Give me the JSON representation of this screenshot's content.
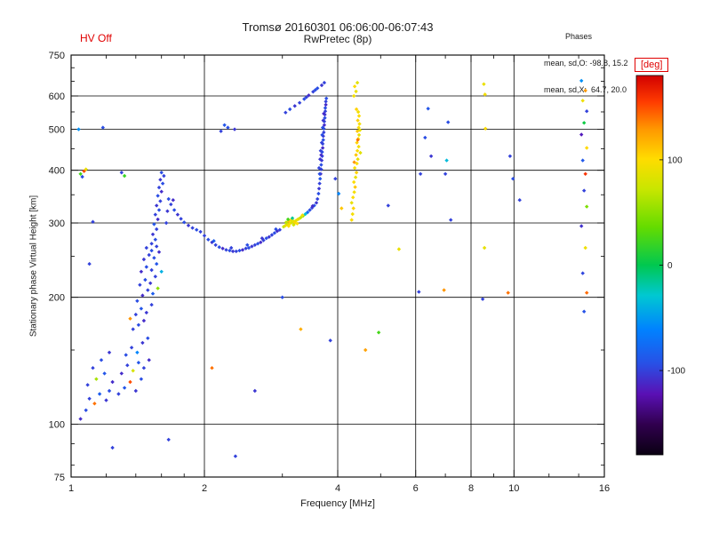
{
  "header": {
    "hv_off": "HV Off",
    "title": "Tromsø 20160301 06:06:00-06:07:43",
    "subtitle": "RwPretec (8p)",
    "phases_title": "Phases",
    "phases_o": "mean, sd,O: -98.8, 15.2",
    "phases_x": "mean, sd,X:  64.7, 20.0"
  },
  "colors": {
    "accent_red": "#e00000",
    "axis": "#000000",
    "background": "#ffffff"
  },
  "chart_data": {
    "type": "scatter",
    "title": "Tromsø 20160301 06:06:00-06:07:43",
    "subtitle": "RwPretec (8p)",
    "xlabel": "Frequency [MHz]",
    "ylabel": "Stationary phase Virtual Height [km]",
    "x_scale": "log",
    "y_scale": "log",
    "xlim": [
      1,
      16
    ],
    "ylim": [
      75,
      750
    ],
    "x_ticks": [
      1,
      2,
      4,
      6,
      8,
      10,
      16
    ],
    "y_ticks": [
      75,
      100,
      200,
      300,
      400,
      500,
      600,
      750
    ],
    "x_gridlines": [
      2,
      4,
      6,
      8,
      10
    ],
    "y_gridlines": [
      100,
      200,
      300,
      400,
      500,
      600
    ],
    "x_minor_ticks": [
      1.2,
      1.4,
      1.6,
      1.8,
      3,
      5,
      7,
      9,
      12,
      14
    ],
    "y_minor_ticks": [
      80,
      90,
      150,
      250,
      350,
      450,
      550,
      650,
      700
    ],
    "grid": true,
    "legend_position": "none",
    "colorbar": {
      "label": "[deg]",
      "ticks": [
        100,
        0,
        -100
      ],
      "range": [
        -180,
        180
      ],
      "stops": [
        {
          "t": 0.0,
          "color": "#0a0012"
        },
        {
          "t": 0.08,
          "color": "#30004e"
        },
        {
          "t": 0.16,
          "color": "#5a10b4"
        },
        {
          "t": 0.24,
          "color": "#2850e6"
        },
        {
          "t": 0.33,
          "color": "#0082ff"
        },
        {
          "t": 0.42,
          "color": "#00c8d2"
        },
        {
          "t": 0.5,
          "color": "#00c850"
        },
        {
          "t": 0.6,
          "color": "#64dc00"
        },
        {
          "t": 0.7,
          "color": "#c8e600"
        },
        {
          "t": 0.78,
          "color": "#ffdc00"
        },
        {
          "t": 0.86,
          "color": "#ff9600"
        },
        {
          "t": 0.93,
          "color": "#ff3c00"
        },
        {
          "t": 1.0,
          "color": "#d20000"
        }
      ]
    },
    "points_format": [
      "frequency_MHz",
      "virtual_height_km",
      "phase_deg"
    ],
    "points": [
      [
        1.05,
        103,
        -110
      ],
      [
        1.08,
        108,
        -95
      ],
      [
        1.1,
        115,
        -100
      ],
      [
        1.13,
        112,
        140
      ],
      [
        1.16,
        118,
        -85
      ],
      [
        1.2,
        114,
        -105
      ],
      [
        1.22,
        120,
        -95
      ],
      [
        1.09,
        124,
        -100
      ],
      [
        1.14,
        128,
        60
      ],
      [
        1.19,
        132,
        -90
      ],
      [
        1.24,
        126,
        -110
      ],
      [
        1.12,
        136,
        -100
      ],
      [
        1.17,
        142,
        -95
      ],
      [
        1.22,
        148,
        -105
      ],
      [
        1.24,
        88,
        -100
      ],
      [
        1.28,
        118,
        -100
      ],
      [
        1.32,
        122,
        -90
      ],
      [
        1.36,
        126,
        150
      ],
      [
        1.4,
        120,
        -105
      ],
      [
        1.44,
        128,
        -95
      ],
      [
        1.3,
        132,
        -110
      ],
      [
        1.34,
        138,
        -100
      ],
      [
        1.38,
        134,
        80
      ],
      [
        1.42,
        140,
        -90
      ],
      [
        1.46,
        136,
        -100
      ],
      [
        1.5,
        142,
        -110
      ],
      [
        1.33,
        146,
        -95
      ],
      [
        1.37,
        152,
        -100
      ],
      [
        1.41,
        148,
        -60
      ],
      [
        1.45,
        156,
        -105
      ],
      [
        1.49,
        160,
        -95
      ],
      [
        1.38,
        168,
        -100
      ],
      [
        1.42,
        172,
        -95
      ],
      [
        1.46,
        176,
        -110
      ],
      [
        1.4,
        182,
        -100
      ],
      [
        1.44,
        188,
        -90
      ],
      [
        1.48,
        184,
        -105
      ],
      [
        1.52,
        192,
        -100
      ],
      [
        1.41,
        196,
        -95
      ],
      [
        1.45,
        202,
        -110
      ],
      [
        1.49,
        208,
        -100
      ],
      [
        1.53,
        204,
        -85
      ],
      [
        1.43,
        214,
        -100
      ],
      [
        1.47,
        220,
        -95
      ],
      [
        1.51,
        216,
        -105
      ],
      [
        1.55,
        224,
        -100
      ],
      [
        1.44,
        230,
        -110
      ],
      [
        1.48,
        236,
        -95
      ],
      [
        1.52,
        232,
        -100
      ],
      [
        1.56,
        240,
        -90
      ],
      [
        1.46,
        246,
        -105
      ],
      [
        1.5,
        252,
        -100
      ],
      [
        1.54,
        248,
        -95
      ],
      [
        1.58,
        256,
        -110
      ],
      [
        1.48,
        262,
        -100
      ],
      [
        1.52,
        258,
        -95
      ],
      [
        1.56,
        264,
        -100
      ],
      [
        1.36,
        178,
        130
      ],
      [
        1.57,
        210,
        50
      ],
      [
        1.6,
        230,
        -40
      ],
      [
        1.52,
        268,
        -100
      ],
      [
        1.55,
        274,
        -95
      ],
      [
        1.53,
        282,
        -105
      ],
      [
        1.56,
        290,
        -100
      ],
      [
        1.54,
        298,
        -90
      ],
      [
        1.57,
        306,
        -110
      ],
      [
        1.55,
        314,
        -100
      ],
      [
        1.58,
        322,
        -95
      ],
      [
        1.56,
        330,
        -105
      ],
      [
        1.59,
        338,
        -100
      ],
      [
        1.57,
        348,
        -95
      ],
      [
        1.6,
        356,
        -110
      ],
      [
        1.58,
        364,
        -100
      ],
      [
        1.61,
        372,
        -95
      ],
      [
        1.59,
        380,
        -105
      ],
      [
        1.62,
        388,
        -100
      ],
      [
        1.6,
        395,
        -95
      ],
      [
        1.64,
        300,
        -100
      ],
      [
        1.65,
        320,
        -105
      ],
      [
        1.66,
        342,
        -95
      ],
      [
        1.68,
        332,
        -100
      ],
      [
        1.71,
        322,
        -95
      ],
      [
        1.74,
        314,
        -105
      ],
      [
        1.77,
        307,
        -100
      ],
      [
        1.8,
        301,
        -95
      ],
      [
        1.84,
        296,
        -105
      ],
      [
        1.88,
        292,
        -100
      ],
      [
        1.92,
        289,
        -95
      ],
      [
        1.96,
        286,
        -100
      ],
      [
        1.7,
        340,
        -110
      ],
      [
        2.0,
        280,
        -100
      ],
      [
        2.04,
        274,
        -95
      ],
      [
        2.08,
        270,
        -105
      ],
      [
        2.12,
        266,
        -100
      ],
      [
        2.16,
        263,
        -95
      ],
      [
        2.2,
        261,
        -110
      ],
      [
        2.24,
        259,
        -100
      ],
      [
        2.28,
        258,
        -95
      ],
      [
        2.32,
        257,
        -105
      ],
      [
        2.36,
        257,
        -100
      ],
      [
        2.4,
        258,
        -95
      ],
      [
        2.44,
        259,
        -110
      ],
      [
        2.48,
        261,
        -100
      ],
      [
        2.52,
        262,
        -95
      ],
      [
        2.56,
        264,
        -105
      ],
      [
        2.6,
        266,
        -100
      ],
      [
        2.64,
        268,
        -95
      ],
      [
        2.68,
        270,
        -110
      ],
      [
        2.72,
        273,
        -100
      ],
      [
        2.76,
        276,
        -95
      ],
      [
        2.8,
        278,
        -105
      ],
      [
        2.84,
        281,
        -100
      ],
      [
        2.88,
        284,
        -95
      ],
      [
        2.92,
        287,
        -110
      ],
      [
        2.96,
        289,
        -100
      ],
      [
        2.1,
        272,
        -85
      ],
      [
        2.3,
        262,
        -100
      ],
      [
        2.5,
        266,
        -95
      ],
      [
        2.7,
        276,
        -105
      ],
      [
        2.9,
        290,
        -95
      ],
      [
        3.02,
        294,
        75
      ],
      [
        3.05,
        296,
        90
      ],
      [
        3.08,
        298,
        85
      ],
      [
        3.1,
        295,
        100
      ],
      [
        3.12,
        299,
        95
      ],
      [
        3.15,
        301,
        80
      ],
      [
        3.18,
        303,
        90
      ],
      [
        3.2,
        300,
        105
      ],
      [
        3.22,
        304,
        85
      ],
      [
        3.25,
        306,
        95
      ],
      [
        3.06,
        301,
        65
      ],
      [
        3.1,
        303,
        110
      ],
      [
        3.14,
        305,
        90
      ],
      [
        3.18,
        297,
        75
      ],
      [
        3.24,
        299,
        100
      ],
      [
        3.27,
        307,
        85
      ],
      [
        3.16,
        308,
        -15
      ],
      [
        3.09,
        306,
        25
      ],
      [
        3.3,
        309,
        70
      ],
      [
        3.34,
        312,
        45
      ],
      [
        3.38,
        315,
        -30
      ],
      [
        3.42,
        318,
        -75
      ],
      [
        3.46,
        322,
        -95
      ],
      [
        3.5,
        326,
        -100
      ],
      [
        3.54,
        330,
        -90
      ],
      [
        3.58,
        335,
        -105
      ],
      [
        3.33,
        313,
        95
      ],
      [
        3.51,
        329,
        -110
      ],
      [
        3.6,
        342,
        -100
      ],
      [
        3.62,
        352,
        -95
      ],
      [
        3.63,
        362,
        -105
      ],
      [
        3.64,
        372,
        -100
      ],
      [
        3.65,
        382,
        -90
      ],
      [
        3.66,
        392,
        -110
      ],
      [
        3.67,
        402,
        -100
      ],
      [
        3.67,
        412,
        -95
      ],
      [
        3.68,
        422,
        -105
      ],
      [
        3.69,
        432,
        -100
      ],
      [
        3.69,
        442,
        -95
      ],
      [
        3.7,
        452,
        -110
      ],
      [
        3.7,
        462,
        -100
      ],
      [
        3.71,
        472,
        -95
      ],
      [
        3.71,
        482,
        -105
      ],
      [
        3.72,
        492,
        -100
      ],
      [
        3.72,
        502,
        -95
      ],
      [
        3.73,
        512,
        -110
      ],
      [
        3.73,
        522,
        -100
      ],
      [
        3.74,
        532,
        -95
      ],
      [
        3.74,
        542,
        -105
      ],
      [
        3.75,
        552,
        -100
      ],
      [
        3.75,
        562,
        -95
      ],
      [
        3.76,
        572,
        -110
      ],
      [
        3.76,
        582,
        -100
      ],
      [
        3.77,
        592,
        -95
      ],
      [
        3.65,
        425,
        -105
      ],
      [
        3.68,
        465,
        -100
      ],
      [
        3.7,
        505,
        -95
      ],
      [
        3.72,
        545,
        -110
      ],
      [
        3.66,
        445,
        -100
      ],
      [
        3.69,
        485,
        -95
      ],
      [
        3.71,
        525,
        -105
      ],
      [
        3.63,
        405,
        -100
      ],
      [
        3.67,
        435,
        -110
      ],
      [
        3.64,
        392,
        -95
      ],
      [
        3.05,
        548,
        -100
      ],
      [
        3.12,
        558,
        -95
      ],
      [
        3.2,
        568,
        -105
      ],
      [
        3.28,
        578,
        -100
      ],
      [
        3.36,
        590,
        -95
      ],
      [
        3.44,
        602,
        -110
      ],
      [
        3.52,
        614,
        -100
      ],
      [
        3.6,
        626,
        -95
      ],
      [
        3.68,
        636,
        -105
      ],
      [
        3.73,
        645,
        -100
      ],
      [
        3.4,
        596,
        -100
      ],
      [
        3.56,
        620,
        -95
      ],
      [
        2.18,
        495,
        -100
      ],
      [
        2.26,
        505,
        -95
      ],
      [
        2.34,
        500,
        -105
      ],
      [
        2.22,
        512,
        -90
      ],
      [
        4.3,
        305,
        100
      ],
      [
        4.32,
        315,
        95
      ],
      [
        4.34,
        325,
        105
      ],
      [
        4.3,
        335,
        90
      ],
      [
        4.33,
        345,
        100
      ],
      [
        4.36,
        355,
        95
      ],
      [
        4.38,
        365,
        110
      ],
      [
        4.35,
        375,
        100
      ],
      [
        4.39,
        385,
        90
      ],
      [
        4.41,
        395,
        105
      ],
      [
        4.37,
        405,
        95
      ],
      [
        4.42,
        415,
        100
      ],
      [
        4.44,
        425,
        90
      ],
      [
        4.4,
        435,
        110
      ],
      [
        4.43,
        445,
        100
      ],
      [
        4.46,
        455,
        95
      ],
      [
        4.42,
        465,
        105
      ],
      [
        4.45,
        475,
        100
      ],
      [
        4.47,
        485,
        90
      ],
      [
        4.43,
        495,
        110
      ],
      [
        4.46,
        505,
        100
      ],
      [
        4.48,
        515,
        95
      ],
      [
        4.44,
        525,
        105
      ],
      [
        4.47,
        538,
        100
      ],
      [
        4.45,
        550,
        95
      ],
      [
        4.41,
        558,
        105
      ],
      [
        4.36,
        418,
        130
      ],
      [
        4.44,
        472,
        140
      ],
      [
        4.5,
        440,
        85
      ],
      [
        4.49,
        498,
        90
      ],
      [
        4.35,
        600,
        95
      ],
      [
        4.4,
        615,
        90
      ],
      [
        4.37,
        632,
        100
      ],
      [
        4.43,
        645,
        85
      ],
      [
        3.95,
        382,
        -100
      ],
      [
        4.02,
        352,
        -60
      ],
      [
        4.08,
        325,
        110
      ],
      [
        3.85,
        158,
        -100
      ],
      [
        3.3,
        168,
        120
      ],
      [
        3.0,
        200,
        -95
      ],
      [
        2.6,
        120,
        -105
      ],
      [
        2.08,
        136,
        140
      ],
      [
        1.66,
        92,
        -100
      ],
      [
        4.62,
        150,
        125
      ],
      [
        4.95,
        165,
        25
      ],
      [
        5.2,
        330,
        -100
      ],
      [
        5.5,
        260,
        90
      ],
      [
        6.15,
        392,
        -100
      ],
      [
        6.3,
        478,
        -95
      ],
      [
        6.5,
        432,
        -105
      ],
      [
        6.1,
        206,
        -100
      ],
      [
        6.4,
        560,
        -90
      ],
      [
        7.0,
        392,
        -100
      ],
      [
        7.05,
        422,
        -35
      ],
      [
        7.1,
        520,
        -95
      ],
      [
        6.95,
        208,
        130
      ],
      [
        7.2,
        305,
        -100
      ],
      [
        8.55,
        640,
        90
      ],
      [
        8.6,
        605,
        95
      ],
      [
        8.62,
        502,
        100
      ],
      [
        8.58,
        262,
        88
      ],
      [
        8.5,
        198,
        -100
      ],
      [
        9.8,
        432,
        -100
      ],
      [
        9.95,
        382,
        -95
      ],
      [
        9.7,
        205,
        140
      ],
      [
        10.3,
        340,
        -100
      ],
      [
        2.35,
        84,
        -100
      ],
      [
        14.2,
        652,
        -55
      ],
      [
        14.5,
        618,
        128
      ],
      [
        14.3,
        585,
        92
      ],
      [
        14.6,
        552,
        -100
      ],
      [
        14.4,
        518,
        5
      ],
      [
        14.2,
        486,
        -118
      ],
      [
        14.6,
        452,
        102
      ],
      [
        14.3,
        422,
        -88
      ],
      [
        14.5,
        392,
        158
      ],
      [
        14.4,
        358,
        -100
      ],
      [
        14.6,
        328,
        45
      ],
      [
        14.2,
        295,
        -108
      ],
      [
        14.5,
        262,
        92
      ],
      [
        14.3,
        228,
        -98
      ],
      [
        14.6,
        205,
        142
      ],
      [
        14.4,
        185,
        -92
      ],
      [
        1.05,
        392,
        25
      ],
      [
        1.07,
        398,
        150
      ],
      [
        1.06,
        386,
        -95
      ],
      [
        1.08,
        402,
        90
      ],
      [
        1.18,
        505,
        -95
      ],
      [
        1.12,
        302,
        -100
      ],
      [
        1.1,
        240,
        -100
      ],
      [
        1.04,
        500,
        -55
      ],
      [
        1.3,
        395,
        -100
      ],
      [
        1.32,
        388,
        20
      ]
    ]
  }
}
